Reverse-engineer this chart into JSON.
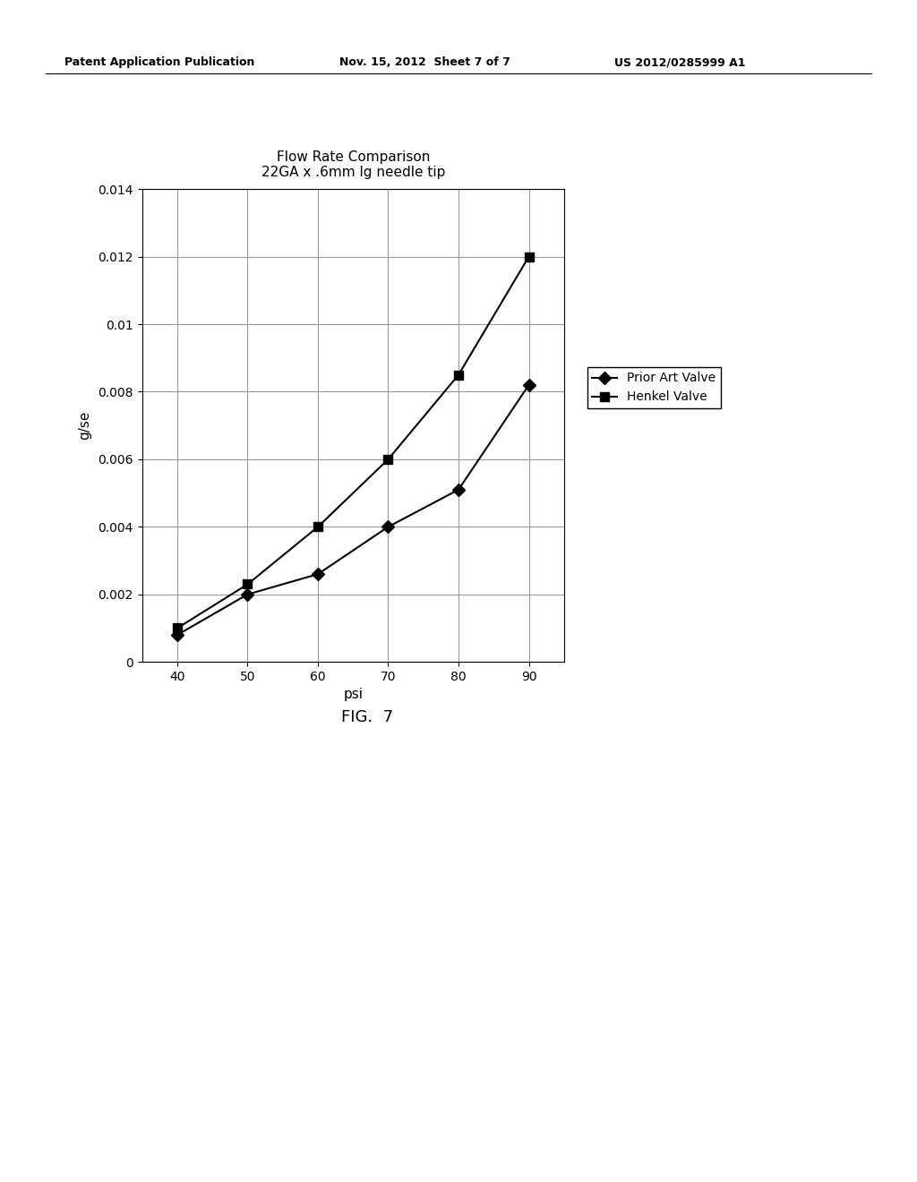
{
  "title_line1": "Flow Rate Comparison",
  "title_line2": "22GA x .6mm lg needle tip",
  "xlabel": "psi",
  "ylabel": "g/se",
  "prior_art_x": [
    40,
    50,
    60,
    70,
    80,
    90
  ],
  "prior_art_y": [
    0.0008,
    0.002,
    0.0026,
    0.004,
    0.0051,
    0.0082
  ],
  "henkel_x": [
    40,
    50,
    60,
    70,
    80,
    90
  ],
  "henkel_y": [
    0.001,
    0.0023,
    0.004,
    0.006,
    0.0085,
    0.012
  ],
  "xlim": [
    35,
    95
  ],
  "ylim": [
    0,
    0.014
  ],
  "yticks": [
    0,
    0.002,
    0.004,
    0.006,
    0.008,
    0.01,
    0.012,
    0.014
  ],
  "xticks": [
    40,
    50,
    60,
    70,
    80,
    90
  ],
  "legend_prior": "Prior Art Valve",
  "legend_henkel": "Henkel Valve",
  "line_color": "#000000",
  "bg_color": "#ffffff",
  "header_left": "Patent Application Publication",
  "header_mid": "Nov. 15, 2012  Sheet 7 of 7",
  "header_right": "US 2012/0285999 A1",
  "fig_label": "FIG.  7"
}
